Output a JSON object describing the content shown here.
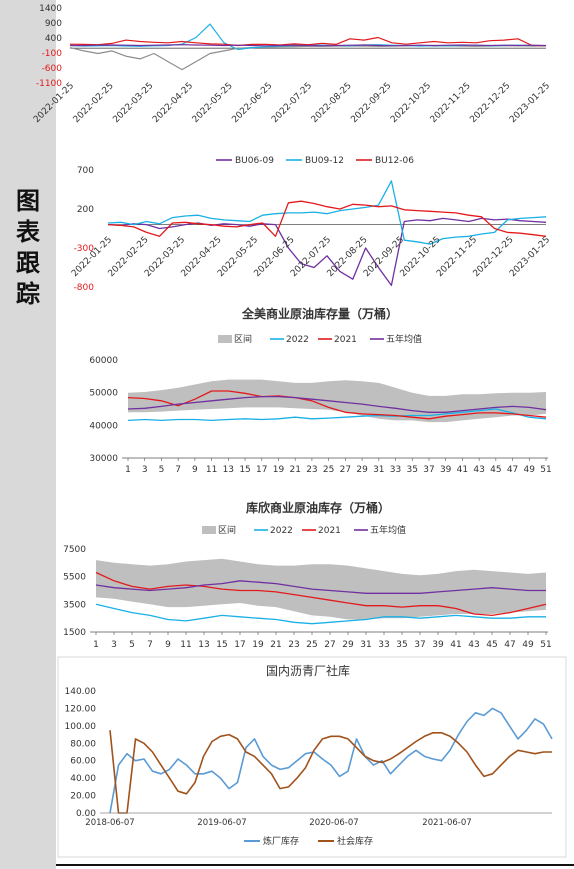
{
  "sidebar": {
    "title_chars": [
      "图",
      "表",
      "跟",
      "踪"
    ]
  },
  "colors": {
    "purple": "#7030a0",
    "cyan": "#1ab0e6",
    "red": "#e31a1c",
    "gray": "#8c8c8c",
    "band": "#bfbfbf",
    "blue": "#5b9bd5",
    "brown": "#a0521b"
  },
  "chart_data": [
    {
      "id": "spread1",
      "type": "line",
      "title": "",
      "ylim": [
        -1400,
        1400
      ],
      "y_ticks": [
        "1400",
        "900",
        "400",
        "-100",
        "-600",
        "-1100"
      ],
      "x_ticks": [
        "2022-01-25",
        "2022-02-25",
        "2022-03-25",
        "2022-04-25",
        "2022-05-25",
        "2022-06-25",
        "2022-07-25",
        "2022-08-25",
        "2022-09-25",
        "2022-10-25",
        "2022-11-25",
        "2022-12-25",
        "2023-01-25"
      ],
      "series": [
        {
          "color": "#8c8c8c",
          "values": [
            -80,
            -200,
            -300,
            -200,
            -400,
            -500,
            -300,
            -600,
            -900,
            -600,
            -300,
            -200,
            -100,
            -80,
            -60,
            -50,
            -40,
            -30,
            -30,
            -20,
            -20,
            -20,
            -30,
            -20,
            -10,
            0,
            -20,
            -10,
            -20,
            -30,
            -20,
            -10,
            -10,
            -20,
            -10
          ]
        },
        {
          "color": "#1ab0e6",
          "values": [
            0,
            -20,
            -10,
            0,
            -20,
            -30,
            -10,
            0,
            50,
            300,
            800,
            100,
            -150,
            -80,
            -50,
            -20,
            0,
            20,
            10,
            0,
            -10,
            20,
            30,
            10,
            0,
            -20,
            -10,
            -10,
            0,
            10,
            -10,
            0,
            10,
            0,
            -10
          ]
        },
        {
          "color": "#e31a1c",
          "values": [
            50,
            40,
            30,
            80,
            200,
            150,
            120,
            100,
            150,
            100,
            60,
            50,
            0,
            40,
            40,
            20,
            60,
            30,
            80,
            40,
            250,
            200,
            300,
            100,
            50,
            100,
            150,
            100,
            120,
            100,
            180,
            200,
            250,
            0,
            -10
          ]
        },
        {
          "color": "#7030a0",
          "values": [
            0,
            0,
            10,
            20,
            10,
            0,
            10,
            20,
            30,
            20,
            10,
            0,
            10,
            0,
            -10,
            0,
            10,
            0,
            -10,
            0,
            10,
            20,
            0,
            -10,
            0,
            10,
            0,
            10,
            20,
            10,
            0,
            10,
            0,
            10,
            0
          ]
        }
      ]
    },
    {
      "id": "spread2",
      "type": "line",
      "title": "",
      "ylim": [
        -800,
        700
      ],
      "y_ticks": [
        "700",
        "200",
        "-300",
        "-800"
      ],
      "x_ticks": [
        "2022-01-25",
        "2022-02-25",
        "2022-03-25",
        "2022-04-25",
        "2022-05-25",
        "2022-06-25",
        "2022-07-25",
        "2022-08-25",
        "2022-09-25",
        "2022-10-25",
        "2022-11-25",
        "2022-12-25",
        "2023-01-25"
      ],
      "legend": [
        "BU06-09",
        "BU09-12",
        "BU12-06"
      ],
      "series": [
        {
          "name": "BU06-09",
          "color": "#7030a0",
          "values": [
            0,
            -10,
            10,
            0,
            -50,
            -30,
            0,
            20,
            -10,
            10,
            0,
            -20,
            10,
            0,
            -300,
            -500,
            -550,
            -400,
            -600,
            -700,
            -300,
            -550,
            -780,
            40,
            60,
            50,
            80,
            60,
            40,
            80,
            60,
            70,
            50,
            40,
            30
          ]
        },
        {
          "name": "BU09-12",
          "color": "#1ab0e6",
          "values": [
            20,
            30,
            0,
            40,
            10,
            90,
            110,
            120,
            80,
            60,
            50,
            40,
            120,
            140,
            150,
            150,
            160,
            140,
            180,
            200,
            220,
            250,
            560,
            -200,
            -220,
            -250,
            -180,
            -160,
            -150,
            -120,
            -100,
            60,
            80,
            90,
            100
          ]
        },
        {
          "name": "BU12-06",
          "color": "#e31a1c",
          "values": [
            0,
            -10,
            -30,
            -100,
            -150,
            20,
            30,
            10,
            0,
            -20,
            -30,
            0,
            20,
            -150,
            280,
            300,
            270,
            230,
            200,
            260,
            250,
            230,
            240,
            190,
            180,
            170,
            160,
            150,
            120,
            100,
            -50,
            -100,
            -110,
            -130,
            -150
          ]
        }
      ]
    },
    {
      "id": "us_crude",
      "type": "line",
      "title": "全美商业原油库存量（万桶）",
      "legend": [
        "区间",
        "2022",
        "2021",
        "五年均值"
      ],
      "ylim": [
        30000,
        60000
      ],
      "y_ticks": [
        "60000",
        "50000",
        "40000",
        "30000"
      ],
      "x_ticks": [
        "1",
        "3",
        "5",
        "7",
        "9",
        "11",
        "13",
        "15",
        "17",
        "19",
        "21",
        "23",
        "25",
        "27",
        "29",
        "31",
        "33",
        "35",
        "37",
        "39",
        "41",
        "43",
        "45",
        "47",
        "49",
        "51"
      ],
      "band_low": [
        44000,
        44000,
        44200,
        44500,
        44800,
        45000,
        45200,
        45500,
        45500,
        45500,
        45200,
        45000,
        44800,
        44000,
        43000,
        42000,
        41500,
        41500,
        41000,
        41000,
        41500,
        42000,
        42500,
        43000,
        43000,
        43500
      ],
      "band_high": [
        50000,
        50200,
        50800,
        51500,
        52500,
        53500,
        54000,
        54000,
        54000,
        53500,
        53000,
        53000,
        53500,
        53800,
        53500,
        53000,
        51500,
        50000,
        49000,
        49000,
        49500,
        49500,
        49800,
        50000,
        50000,
        50200
      ],
      "series": [
        {
          "name": "2022",
          "color": "#1ab0e6",
          "values": [
            41500,
            41800,
            41500,
            41800,
            41800,
            41500,
            41800,
            42000,
            41800,
            42000,
            42500,
            42000,
            42200,
            42500,
            42800,
            43000,
            42800,
            43000,
            43000,
            43500,
            44000,
            44500,
            45000,
            43800,
            42500,
            42000
          ]
        },
        {
          "name": "2021",
          "color": "#e31a1c",
          "values": [
            48500,
            48200,
            47500,
            46000,
            48000,
            50500,
            50500,
            49800,
            48800,
            49000,
            48500,
            47500,
            45500,
            44000,
            43500,
            43300,
            43000,
            42500,
            42000,
            42800,
            43300,
            43800,
            43800,
            43500,
            43000,
            42500
          ]
        },
        {
          "name": "五年均值",
          "color": "#7030a0",
          "values": [
            45000,
            45200,
            45800,
            46500,
            47000,
            47500,
            48000,
            48500,
            48800,
            48800,
            48500,
            48000,
            47500,
            47000,
            46500,
            45800,
            45200,
            44500,
            44000,
            44000,
            44500,
            45000,
            45500,
            45800,
            45500,
            44800
          ]
        }
      ]
    },
    {
      "id": "cushing",
      "type": "line",
      "title": "库欣商业原油库存（万桶）",
      "legend": [
        "区间",
        "2022",
        "2021",
        "五年均值"
      ],
      "ylim": [
        1500,
        7500
      ],
      "y_ticks": [
        "7500",
        "5500",
        "3500",
        "1500"
      ],
      "x_ticks": [
        "1",
        "3",
        "5",
        "7",
        "9",
        "11",
        "13",
        "15",
        "17",
        "19",
        "21",
        "23",
        "25",
        "27",
        "29",
        "31",
        "33",
        "35",
        "37",
        "39",
        "41",
        "43",
        "45",
        "47",
        "49",
        "51"
      ],
      "band_low": [
        4000,
        3900,
        3700,
        3500,
        3300,
        3300,
        3400,
        3500,
        3600,
        3400,
        3300,
        3000,
        2700,
        2600,
        2400,
        2400,
        2500,
        2500,
        2600,
        2700,
        2800,
        2800,
        2800,
        2900,
        3000,
        3100
      ],
      "band_high": [
        6700,
        6500,
        6400,
        6300,
        6400,
        6600,
        6700,
        6800,
        6600,
        6400,
        6300,
        6300,
        6400,
        6400,
        6300,
        6100,
        5900,
        5700,
        5600,
        5700,
        5900,
        6000,
        5900,
        5800,
        5700,
        5800
      ],
      "series": [
        {
          "name": "2022",
          "color": "#1ab0e6",
          "values": [
            3500,
            3200,
            2900,
            2700,
            2400,
            2300,
            2500,
            2700,
            2600,
            2500,
            2400,
            2200,
            2100,
            2200,
            2300,
            2400,
            2600,
            2600,
            2500,
            2600,
            2700,
            2600,
            2500,
            2500,
            2600,
            2600
          ]
        },
        {
          "name": "2021",
          "color": "#e31a1c",
          "values": [
            5800,
            5200,
            4800,
            4600,
            4800,
            4900,
            4800,
            4600,
            4500,
            4500,
            4400,
            4200,
            4000,
            3800,
            3600,
            3400,
            3400,
            3300,
            3400,
            3400,
            3200,
            2800,
            2700,
            2900,
            3200,
            3500
          ]
        },
        {
          "name": "五年均值",
          "color": "#7030a0",
          "values": [
            4900,
            4700,
            4600,
            4500,
            4600,
            4700,
            4900,
            5000,
            5200,
            5100,
            5000,
            4800,
            4600,
            4500,
            4400,
            4300,
            4300,
            4300,
            4300,
            4400,
            4500,
            4600,
            4700,
            4600,
            4500,
            4500
          ]
        }
      ]
    },
    {
      "id": "asphalt",
      "type": "line",
      "title": "国内沥青厂社库",
      "legend": [
        "炼厂库存",
        "社会库存"
      ],
      "ylim": [
        0,
        140
      ],
      "y_ticks": [
        "140.00",
        "120.00",
        "100.00",
        "80.00",
        "60.00",
        "40.00",
        "20.00",
        "0.00"
      ],
      "x_ticks": [
        "2018-06-07",
        "2019-06-07",
        "2020-06-07",
        "2021-06-07"
      ],
      "series": [
        {
          "name": "炼厂库存",
          "color": "#5b9bd5",
          "values": [
            0,
            55,
            68,
            60,
            62,
            48,
            45,
            50,
            62,
            55,
            45,
            45,
            48,
            40,
            28,
            35,
            75,
            85,
            65,
            55,
            50,
            52,
            60,
            68,
            70,
            62,
            55,
            42,
            48,
            85,
            65,
            55,
            60,
            45,
            55,
            65,
            72,
            65,
            62,
            60,
            72,
            90,
            105,
            115,
            112,
            120,
            115,
            100,
            85,
            95,
            108,
            102,
            85
          ]
        },
        {
          "name": "社会库存",
          "color": "#a0521b",
          "values": [
            95,
            0,
            0,
            85,
            80,
            70,
            55,
            40,
            25,
            22,
            35,
            65,
            82,
            88,
            90,
            85,
            70,
            65,
            55,
            45,
            28,
            30,
            40,
            52,
            72,
            85,
            88,
            88,
            85,
            75,
            65,
            60,
            58,
            62,
            68,
            75,
            82,
            88,
            92,
            92,
            88,
            80,
            70,
            55,
            42,
            45,
            55,
            65,
            72,
            70,
            68,
            70,
            70
          ]
        }
      ]
    }
  ]
}
